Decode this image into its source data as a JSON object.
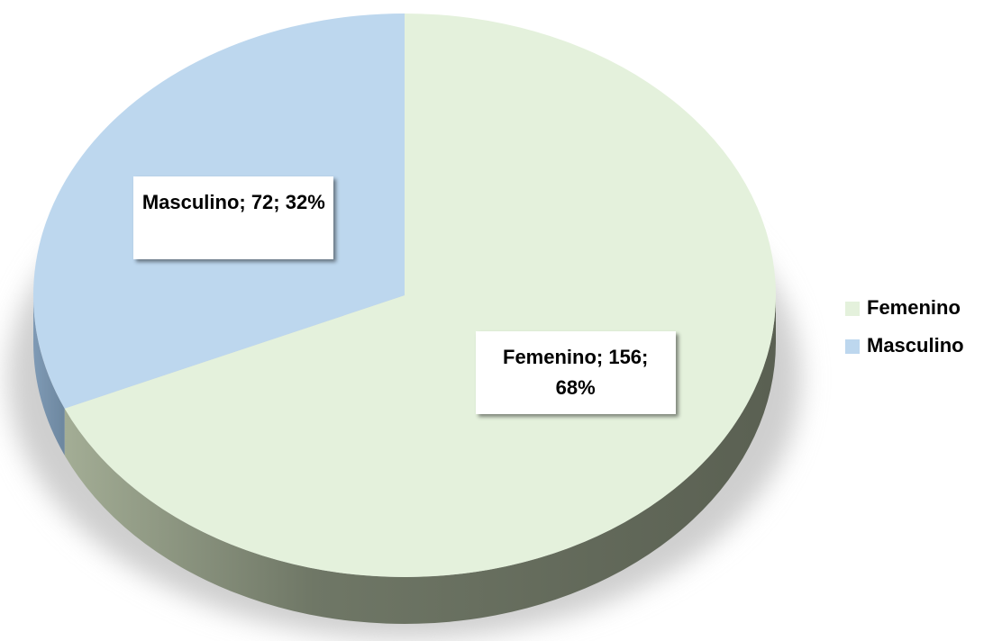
{
  "chart_data": {
    "type": "pie",
    "categories": [
      "Femenino",
      "Masculino"
    ],
    "values": [
      156,
      72
    ],
    "value_labels": [
      "Femenino; 156; 68%",
      "Masculino; 72; 32%"
    ],
    "colors": [
      "#e4f1dc",
      "#bdd7ee"
    ],
    "legend": "right"
  }
}
